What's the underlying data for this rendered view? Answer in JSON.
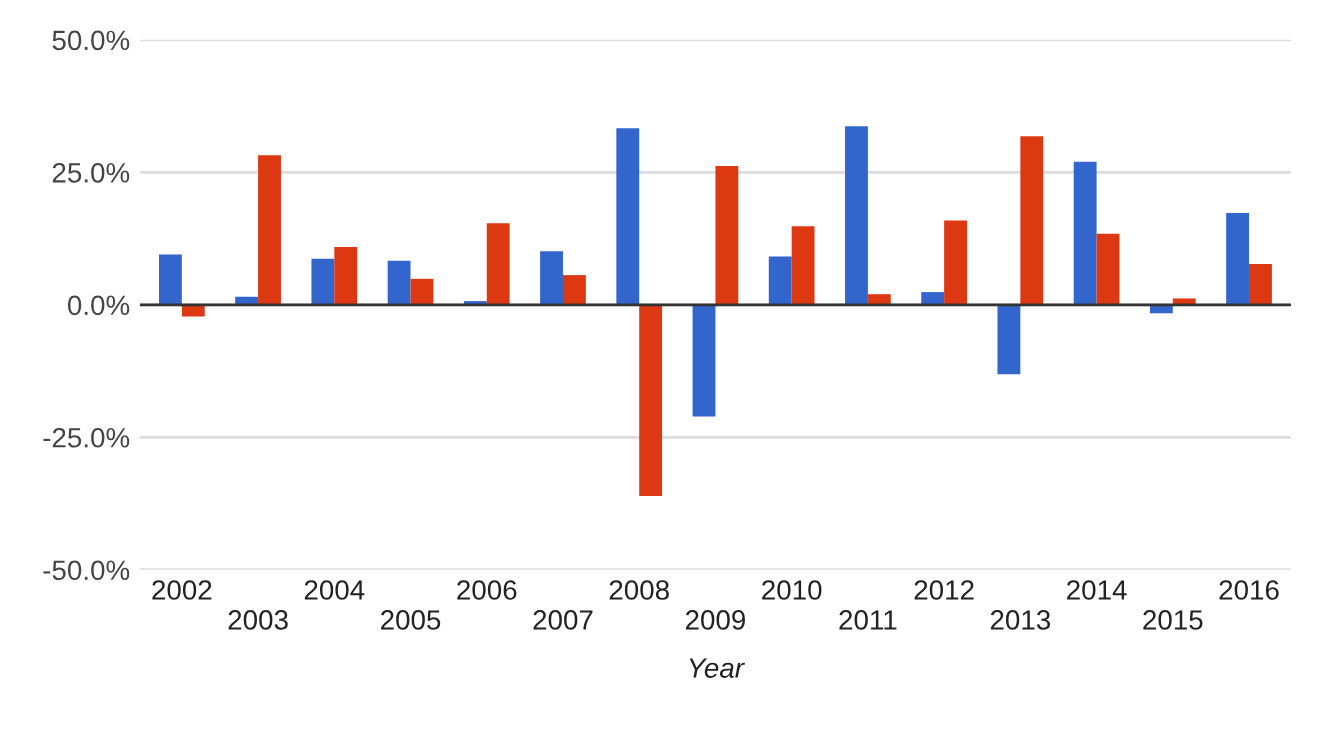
{
  "chart_data": {
    "type": "bar",
    "xlabel": "Year",
    "categories": [
      "2002",
      "2003",
      "2004",
      "2005",
      "2006",
      "2007",
      "2008",
      "2009",
      "2010",
      "2011",
      "2012",
      "2013",
      "2014",
      "2015",
      "2016"
    ],
    "series": [
      {
        "color": "#3366cc",
        "values": [
          9.5,
          1.5,
          8.7,
          8.3,
          0.7,
          10.1,
          33.3,
          -21.1,
          9.1,
          33.7,
          2.4,
          -13.1,
          27.0,
          -1.6,
          17.3
        ]
      },
      {
        "color": "#dc3912",
        "values": [
          -2.2,
          28.2,
          10.9,
          4.9,
          15.4,
          5.6,
          -36.1,
          26.2,
          14.8,
          2.0,
          15.9,
          31.8,
          13.4,
          1.2,
          7.7
        ]
      }
    ],
    "ylim": [
      -50,
      50
    ],
    "yticks": [
      {
        "value": -50,
        "label": "-50.0%"
      },
      {
        "value": -25,
        "label": "-25.0%"
      },
      {
        "value": 0,
        "label": "0.0%"
      },
      {
        "value": 25,
        "label": "25.0%"
      },
      {
        "value": 50,
        "label": "50.0%"
      }
    ],
    "grid": "y"
  }
}
